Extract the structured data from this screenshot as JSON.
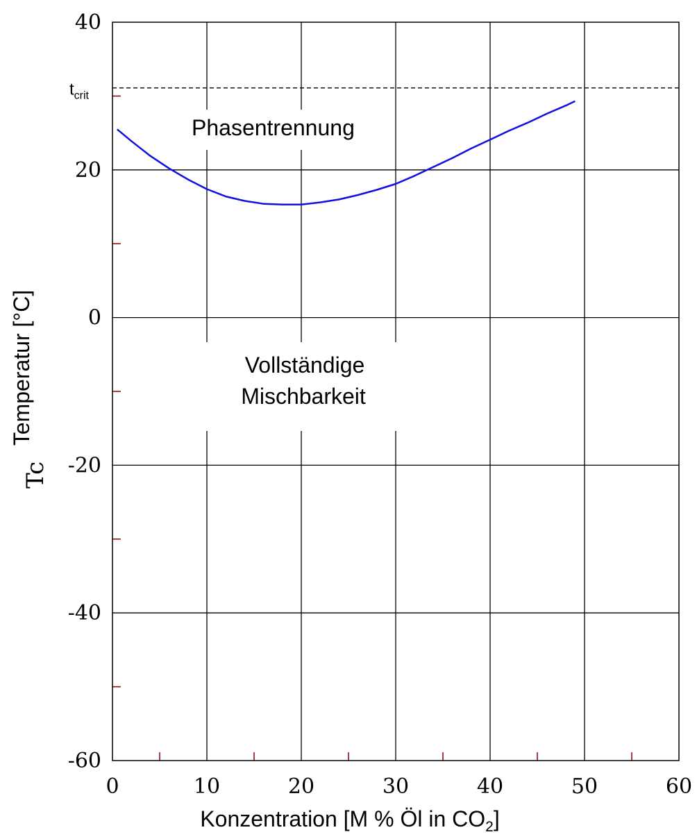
{
  "chart_data": {
    "type": "line",
    "title": "",
    "xlabel_main": "Konzentration [M % Öl in CO",
    "xlabel_sub": "2",
    "xlabel_end": "]",
    "ylabel": "Temperatur [°C]",
    "ylabel_overlap": "Tc",
    "xlim": [
      0,
      60
    ],
    "ylim": [
      -60,
      40
    ],
    "x_ticks": [
      0,
      10,
      20,
      30,
      40,
      50,
      60
    ],
    "y_ticks": [
      40,
      20,
      0,
      -20,
      -40,
      -60
    ],
    "x_tick_labels": [
      "0",
      "10",
      "20",
      "30",
      "40",
      "50",
      "60"
    ],
    "y_tick_labels": [
      "40",
      "20",
      "0",
      "-20",
      "-40",
      "-60"
    ],
    "x_minor_ticks": [
      5,
      15,
      25,
      35,
      45,
      55
    ],
    "y_minor_ticks": [
      30,
      10,
      -10,
      -30,
      -50
    ],
    "grid": true,
    "critical_temperature": {
      "value": 31.1,
      "label_main": "t",
      "label_sub": "crit"
    },
    "annotations": {
      "upper_region": "Phasentrennung",
      "lower_region_line1": "Vollständige",
      "lower_region_line2": "Mischbarkeit"
    },
    "series": [
      {
        "color": "#1010e0",
        "x": [
          0.5,
          2,
          4,
          6,
          8,
          10,
          12,
          14,
          16,
          18,
          20,
          22,
          24,
          26,
          28,
          30,
          32,
          34,
          36,
          38,
          40,
          42,
          44,
          46,
          48,
          49
        ],
        "y": [
          25.5,
          23.9,
          21.9,
          20.2,
          18.7,
          17.4,
          16.4,
          15.8,
          15.4,
          15.3,
          15.3,
          15.6,
          16.0,
          16.6,
          17.3,
          18.1,
          19.2,
          20.4,
          21.6,
          22.9,
          24.1,
          25.3,
          26.4,
          27.6,
          28.7,
          29.3
        ]
      }
    ]
  }
}
